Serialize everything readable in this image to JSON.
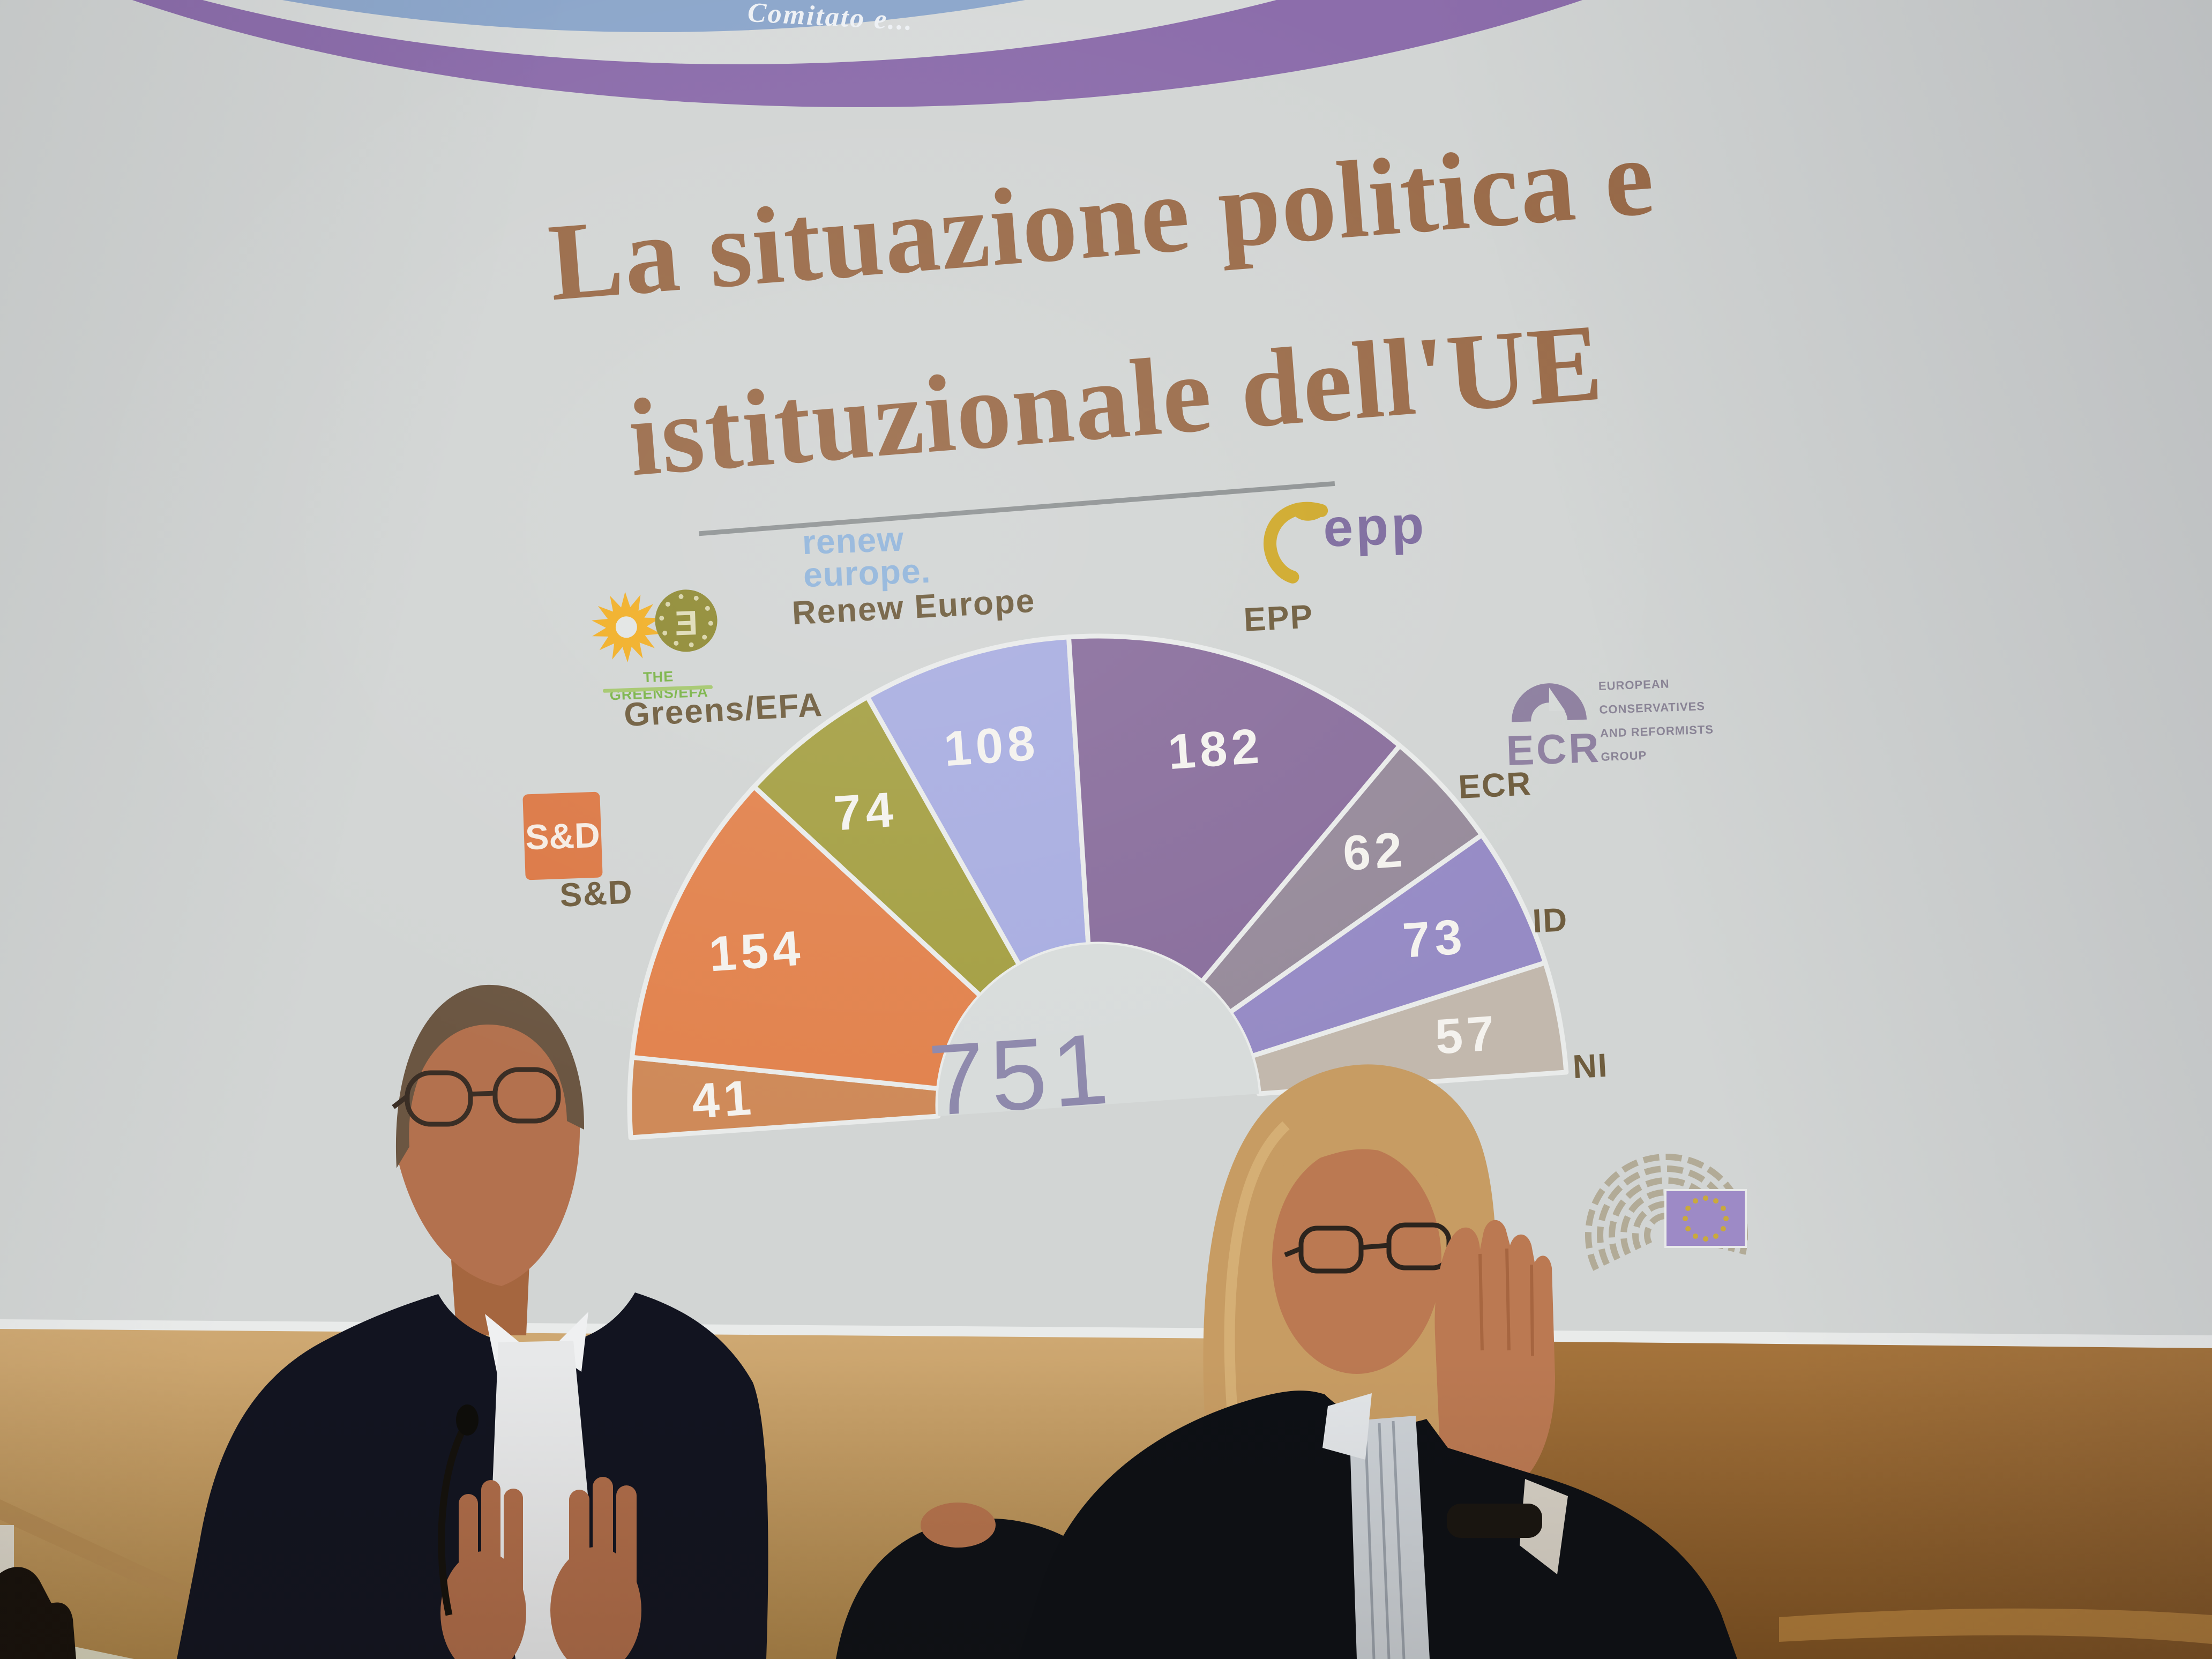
{
  "slide": {
    "badge_text": "Comitato e...",
    "title_line1": "La situazione politica e",
    "title_line2": "istituzionale dell'UE",
    "logos": {
      "sd_box": "S&D",
      "renew_line1": "renew",
      "renew_line2": "europe.",
      "epp_text": "epp",
      "greens_bar": "THE GREENS/EFA",
      "ecr_text": "ECR",
      "ecr_side": [
        "EUROPEAN",
        "CONSERVATIVES",
        "AND REFORMISTS",
        "GROUP"
      ]
    }
  },
  "chart_data": {
    "type": "pie",
    "layout": "hemicycle",
    "title": "La situazione politica e istituzionale dell'UE",
    "total": 751,
    "center_label": "751",
    "legend_position": "around",
    "slices": [
      {
        "label": "",
        "value": 41,
        "color": "#cf8a59"
      },
      {
        "label": "S&D",
        "value": 154,
        "color": "#e2834e"
      },
      {
        "label": "Greens/EFA",
        "value": 74,
        "color": "#a5a044"
      },
      {
        "label": "Renew Europe",
        "value": 108,
        "color": "#a9aee1"
      },
      {
        "label": "EPP",
        "value": 182,
        "color": "#8a6f9d"
      },
      {
        "label": "ECR",
        "value": 62,
        "color": "#978b9b"
      },
      {
        "label": "ID",
        "value": 73,
        "color": "#968bc5"
      },
      {
        "label": "NI",
        "value": 57,
        "color": "#c2b8ad"
      }
    ]
  },
  "colors": {
    "screen": "#d2d5d4",
    "title_text": "#9a6b49",
    "party_label_text": "#6f5d3e",
    "seat_number_text": "#f4f2ee",
    "center_total_text": "#8e89ac",
    "badge_purple": "#8c6dab",
    "badge_blue": "#8da7cb",
    "left_wall": "#c5a06a",
    "right_wall": "#935f2c"
  }
}
